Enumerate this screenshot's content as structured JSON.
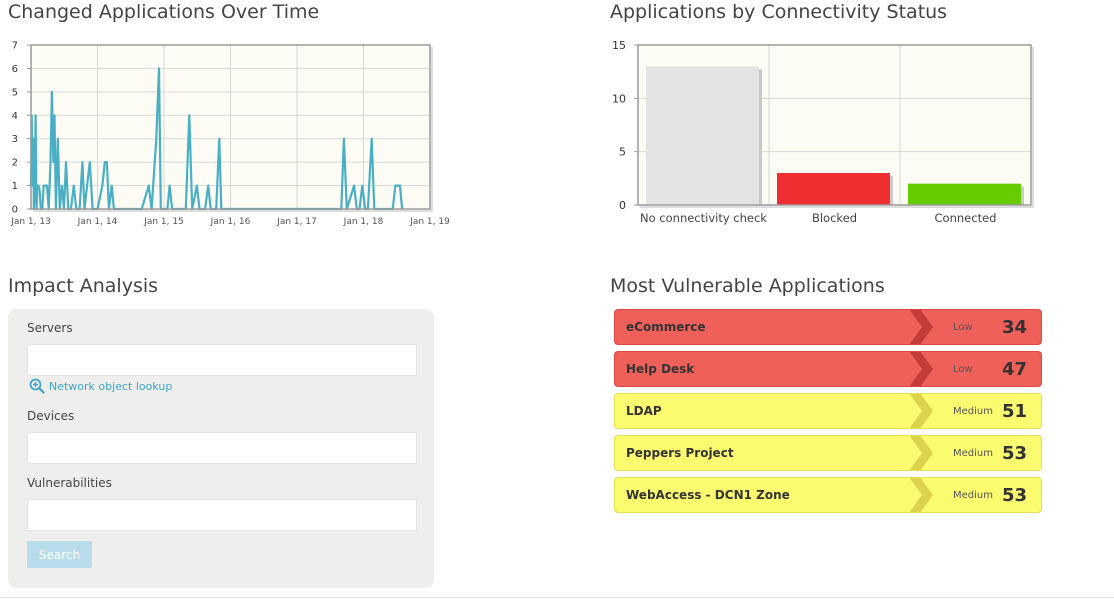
{
  "changed_apps": {
    "title": "Changed Applications Over Time",
    "chart_data": {
      "type": "line",
      "title": "Changed Applications Over Time",
      "x_tick_labels": [
        "Jan 1, 13",
        "Jan 1, 14",
        "Jan 1, 15",
        "Jan 1, 16",
        "Jan 1, 17",
        "Jan 1, 18",
        "Jan 1, 19"
      ],
      "y_tick_labels": [
        "0",
        "1",
        "2",
        "3",
        "4",
        "5",
        "6",
        "7"
      ],
      "xlim": [
        "2013-01-01",
        "2019-01-01"
      ],
      "ylim": [
        0,
        7
      ],
      "grid": true,
      "color": "#4aafc4",
      "points": [
        [
          "2013-01-01",
          1
        ],
        [
          "2013-01-05",
          4
        ],
        [
          "2013-01-09",
          1
        ],
        [
          "2013-01-13",
          3
        ],
        [
          "2013-01-17",
          0
        ],
        [
          "2013-01-22",
          1
        ],
        [
          "2013-01-26",
          4
        ],
        [
          "2013-01-31",
          0
        ],
        [
          "2013-02-05",
          1
        ],
        [
          "2013-02-11",
          1
        ],
        [
          "2013-02-17",
          0.8
        ],
        [
          "2013-02-24",
          0
        ],
        [
          "2013-03-04",
          0
        ],
        [
          "2013-03-12",
          1
        ],
        [
          "2013-03-20",
          1
        ],
        [
          "2013-03-30",
          1
        ],
        [
          "2013-04-08",
          0
        ],
        [
          "2013-04-18",
          2
        ],
        [
          "2013-04-26",
          5
        ],
        [
          "2013-05-04",
          2
        ],
        [
          "2013-05-10",
          4
        ],
        [
          "2013-05-18",
          0
        ],
        [
          "2013-05-28",
          3
        ],
        [
          "2013-06-08",
          0
        ],
        [
          "2013-06-20",
          1
        ],
        [
          "2013-07-01",
          0
        ],
        [
          "2013-07-12",
          2
        ],
        [
          "2013-07-25",
          0
        ],
        [
          "2013-08-08",
          0
        ],
        [
          "2013-08-24",
          1
        ],
        [
          "2013-09-06",
          0
        ],
        [
          "2013-09-25",
          0
        ],
        [
          "2013-10-10",
          2
        ],
        [
          "2013-10-22",
          0
        ],
        [
          "2013-11-05",
          1
        ],
        [
          "2013-11-20",
          2
        ],
        [
          "2013-12-05",
          0
        ],
        [
          "2014-01-01",
          0
        ],
        [
          "2014-01-28",
          1
        ],
        [
          "2014-02-10",
          2
        ],
        [
          "2014-02-22",
          2
        ],
        [
          "2014-03-05",
          0
        ],
        [
          "2014-03-20",
          1
        ],
        [
          "2014-04-01",
          0
        ],
        [
          "2014-05-01",
          0
        ],
        [
          "2014-06-01",
          0
        ],
        [
          "2014-07-01",
          0
        ],
        [
          "2014-08-01",
          0
        ],
        [
          "2014-09-01",
          0
        ],
        [
          "2014-10-10",
          1
        ],
        [
          "2014-10-25",
          0
        ],
        [
          "2014-11-20",
          3
        ],
        [
          "2014-12-05",
          6
        ],
        [
          "2014-12-15",
          0
        ],
        [
          "2015-01-20",
          0
        ],
        [
          "2015-02-01",
          1
        ],
        [
          "2015-02-15",
          0
        ],
        [
          "2015-03-01",
          0
        ],
        [
          "2015-04-01",
          0
        ],
        [
          "2015-05-01",
          0
        ],
        [
          "2015-05-20",
          4
        ],
        [
          "2015-06-05",
          0
        ],
        [
          "2015-07-01",
          1
        ],
        [
          "2015-07-15",
          0
        ],
        [
          "2015-08-15",
          0
        ],
        [
          "2015-09-01",
          1
        ],
        [
          "2015-09-15",
          0
        ],
        [
          "2015-10-15",
          0
        ],
        [
          "2015-11-01",
          3
        ],
        [
          "2015-11-12",
          0
        ],
        [
          "2016-06-01",
          0
        ],
        [
          "2016-12-15",
          0
        ],
        [
          "2017-06-01",
          0
        ],
        [
          "2017-07-01",
          0
        ],
        [
          "2017-09-01",
          0
        ],
        [
          "2017-09-15",
          3
        ],
        [
          "2017-10-01",
          0
        ],
        [
          "2017-11-10",
          1
        ],
        [
          "2017-11-25",
          0
        ],
        [
          "2017-12-10",
          0
        ],
        [
          "2017-12-25",
          1
        ],
        [
          "2018-01-10",
          0
        ],
        [
          "2018-01-25",
          0
        ],
        [
          "2018-02-15",
          3
        ],
        [
          "2018-03-01",
          0
        ],
        [
          "2018-06-10",
          0
        ],
        [
          "2018-06-25",
          1
        ],
        [
          "2018-07-10",
          1
        ],
        [
          "2018-07-20",
          1
        ],
        [
          "2018-08-01",
          0
        ]
      ]
    }
  },
  "connectivity": {
    "title": "Applications by Connectivity Status",
    "chart_data": {
      "type": "bar",
      "categories": [
        "No connectivity check",
        "Blocked",
        "Connected"
      ],
      "values": [
        13,
        3,
        2
      ],
      "colors": [
        "#e3e3e3",
        "#ee2e31",
        "#66cc00"
      ],
      "ylim": [
        0,
        15
      ],
      "y_tick_labels": [
        "0",
        "5",
        "10",
        "15"
      ],
      "grid": true
    }
  },
  "impact": {
    "title": "Impact Analysis",
    "servers_label": "Servers",
    "servers_value": "",
    "lookup_link": "Network object lookup",
    "devices_label": "Devices",
    "devices_value": "",
    "vulnerabilities_label": "Vulnerabilities",
    "vulnerabilities_value": "",
    "search_button": "Search"
  },
  "vulnerable": {
    "title": "Most Vulnerable Applications",
    "colors": {
      "low_bg": "#f0605a",
      "low_border": "#dd4444",
      "low_chevron": "#c43c38",
      "medium_bg": "#fbfb70",
      "medium_border": "#e6e050",
      "medium_chevron": "#dcd24c"
    },
    "items": [
      {
        "name": "eCommerce",
        "level": "Low",
        "score": "34"
      },
      {
        "name": "Help Desk",
        "level": "Low",
        "score": "47"
      },
      {
        "name": "LDAP",
        "level": "Medium",
        "score": "51"
      },
      {
        "name": "Peppers Project",
        "level": "Medium",
        "score": "53"
      },
      {
        "name": "WebAccess - DCN1 Zone",
        "level": "Medium",
        "score": "53"
      }
    ]
  }
}
